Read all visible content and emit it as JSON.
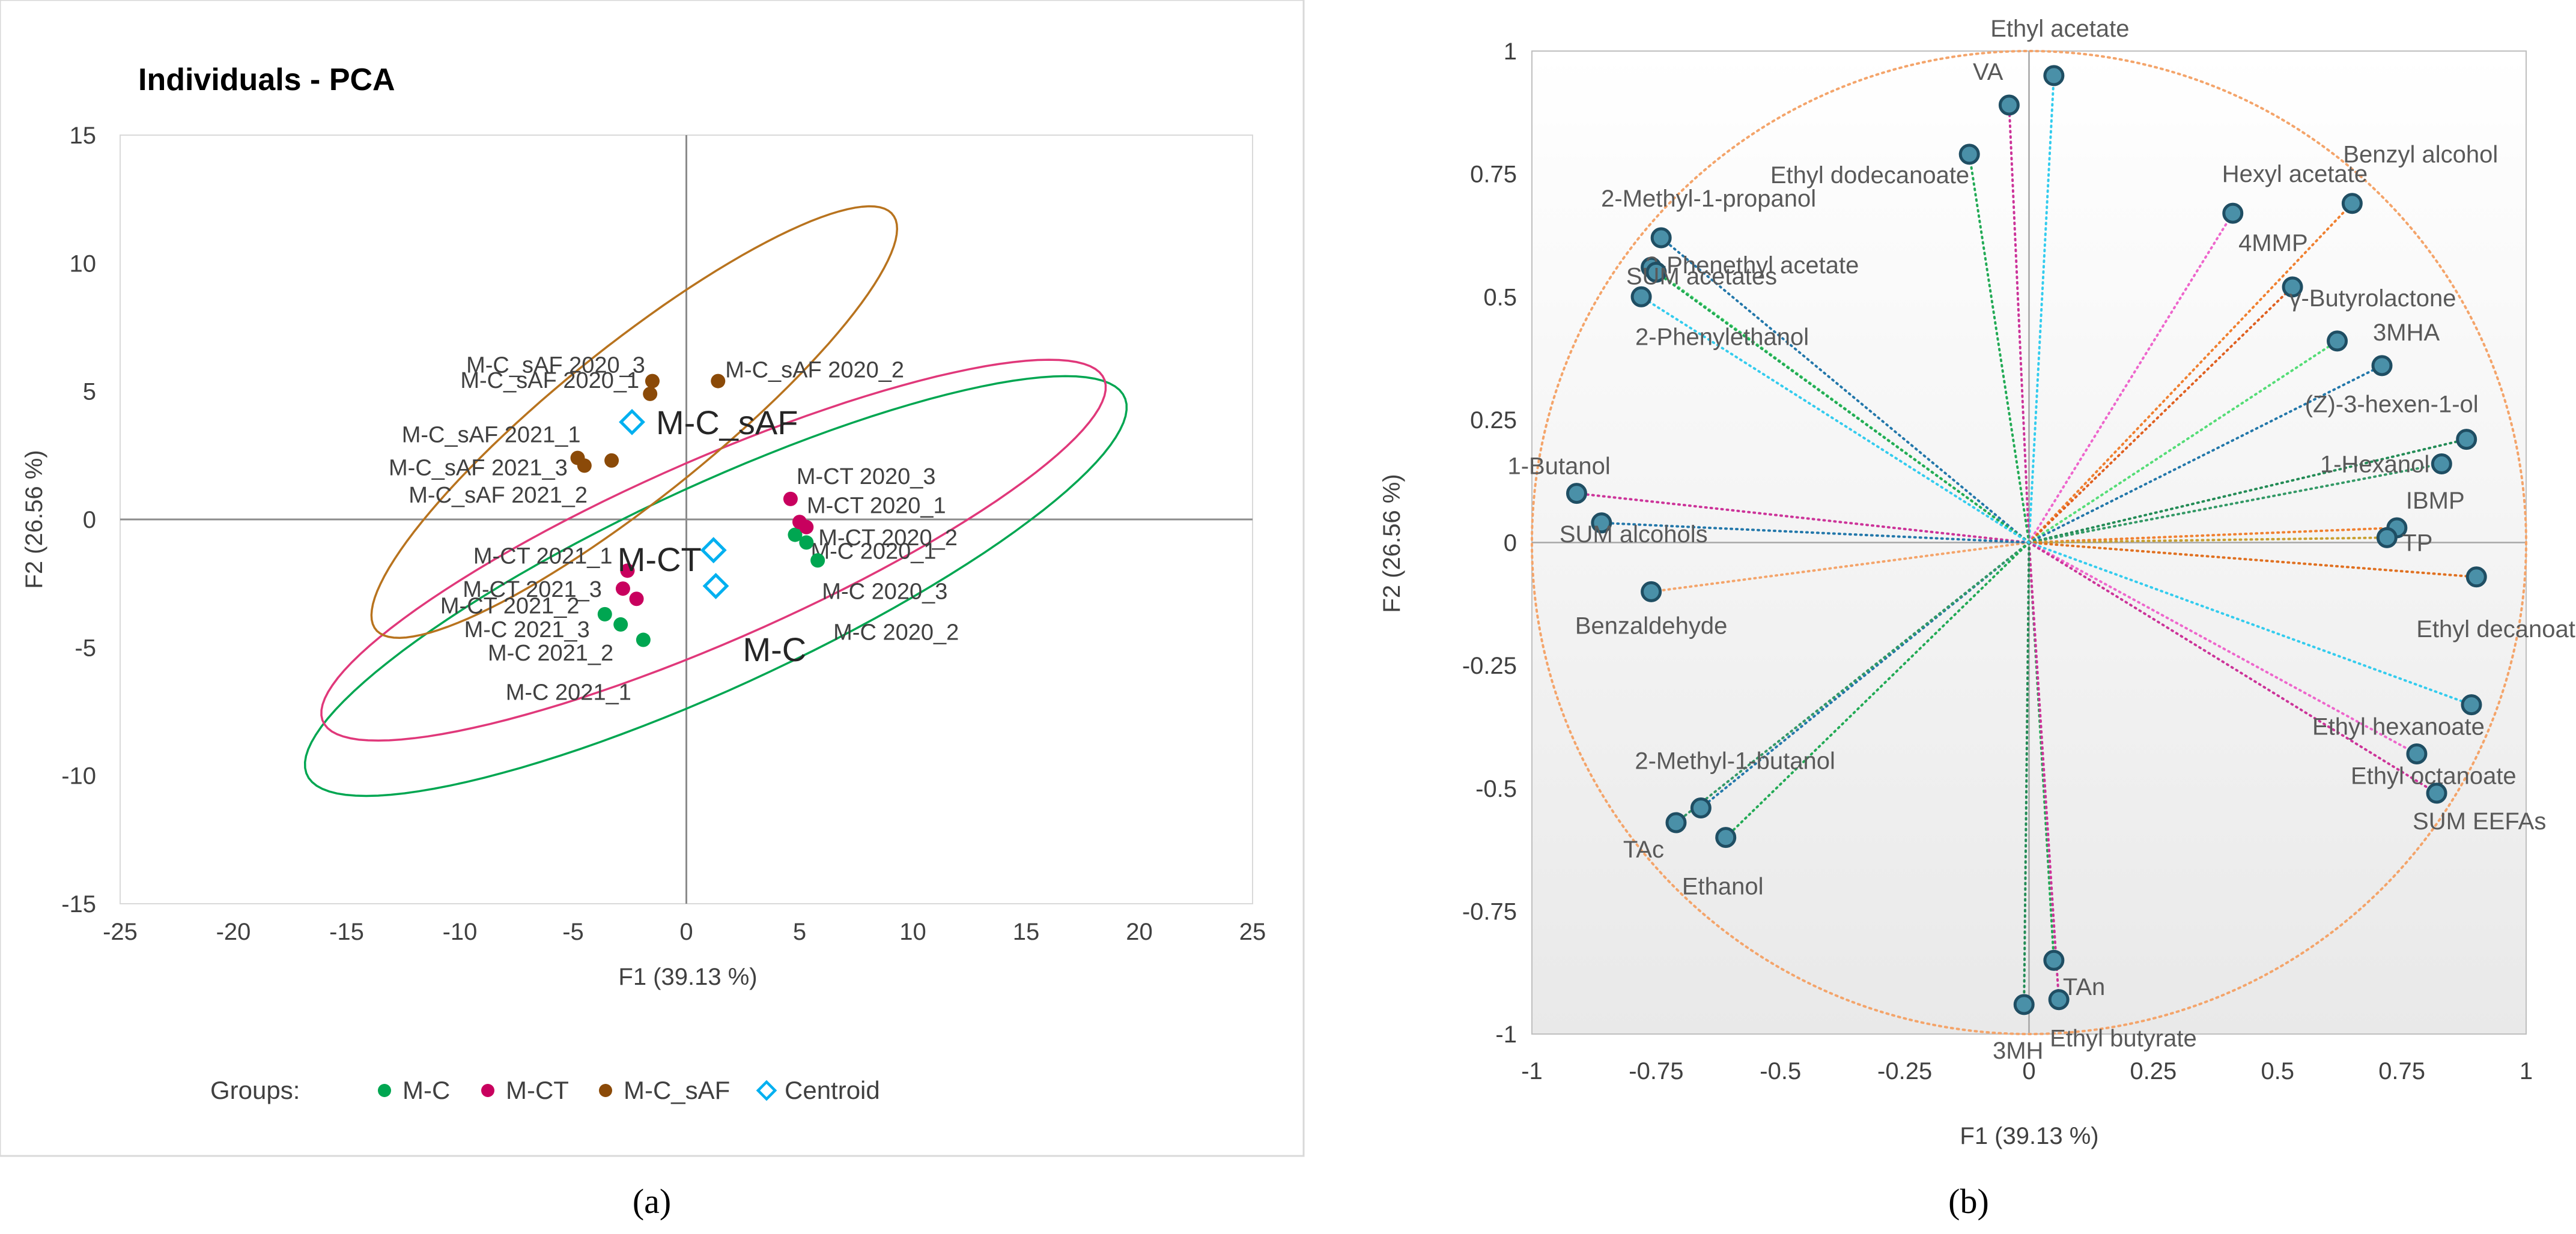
{
  "chart_data": [
    {
      "type": "scatter",
      "title": "Individuals - PCA",
      "caption": "(a)",
      "xlabel": "F1 (39.13 %)",
      "ylabel": "F2 (26.56 %)",
      "xlim": [
        -25,
        25
      ],
      "ylim": [
        -15,
        15
      ],
      "xticks": [
        -25,
        -20,
        -15,
        -10,
        -5,
        0,
        5,
        10,
        15,
        20,
        25
      ],
      "yticks": [
        -15,
        -10,
        -5,
        0,
        5,
        10,
        15
      ],
      "legend_title": "Groups:",
      "legend_position": "bottom",
      "colors": {
        "M-C": "#00A651",
        "M-CT": "#C8005E",
        "M-C_sAF": "#8B4A08",
        "Centroid": "#00B0F0",
        "ellipse_M-C": "#00A651",
        "ellipse_M-CT": "#E0387A",
        "ellipse_M-C_sAF": "#B8731E"
      },
      "series": [
        {
          "name": "M-C",
          "points": [
            {
              "label": "M-C 2020_1",
              "x": 4.8,
              "y": -0.6
            },
            {
              "label": "M-C 2020_3",
              "x": 5.3,
              "y": -0.9
            },
            {
              "label": "M-C 2020_2",
              "x": 5.8,
              "y": -1.6
            },
            {
              "label": "M-C 2021_3",
              "x": -3.6,
              "y": -3.7
            },
            {
              "label": "M-C 2021_2",
              "x": -2.9,
              "y": -4.1
            },
            {
              "label": "M-C 2021_1",
              "x": -1.9,
              "y": -4.7
            }
          ]
        },
        {
          "name": "M-CT",
          "points": [
            {
              "label": "M-CT 2020_3",
              "x": 4.6,
              "y": 0.8
            },
            {
              "label": "M-CT 2020_1",
              "x": 5.0,
              "y": -0.1
            },
            {
              "label": "M-CT 2020_2",
              "x": 5.3,
              "y": -0.3
            },
            {
              "label": "M-CT 2021_1",
              "x": -2.6,
              "y": -2.0
            },
            {
              "label": "M-CT 2021_3",
              "x": -2.8,
              "y": -2.7
            },
            {
              "label": "M-CT 2021_2",
              "x": -2.2,
              "y": -3.1
            }
          ]
        },
        {
          "name": "M-C_sAF",
          "points": [
            {
              "label": "M-C_sAF 2020_3",
              "x": -1.5,
              "y": 5.4
            },
            {
              "label": "M-C_sAF 2020_1",
              "x": -1.6,
              "y": 4.9
            },
            {
              "label": "M-C_sAF 2020_2",
              "x": 1.4,
              "y": 5.4
            },
            {
              "label": "M-C_sAF 2021_1",
              "x": -4.8,
              "y": 2.4
            },
            {
              "label": "M-C_sAF 2021_3",
              "x": -4.5,
              "y": 2.1
            },
            {
              "label": "M-C_sAF 2021_2",
              "x": -3.3,
              "y": 2.3
            }
          ]
        },
        {
          "name": "Centroid",
          "points": [
            {
              "label": "M-C_sAF",
              "x": -2.4,
              "y": 3.8
            },
            {
              "label": "M-CT",
              "x": 1.2,
              "y": -1.2
            },
            {
              "label": "M-C",
              "x": 1.3,
              "y": -2.6
            }
          ]
        }
      ],
      "confidence_ellipses": [
        {
          "group": "M-C",
          "center": [
            1.3,
            -2.6
          ],
          "semi_axes": [
            19.5,
            4.0
          ],
          "angle_deg": 22
        },
        {
          "group": "M-CT",
          "center": [
            1.2,
            -1.2
          ],
          "semi_axes": [
            18.5,
            3.6
          ],
          "angle_deg": 21
        },
        {
          "group": "M-C_sAF",
          "center": [
            -2.3,
            3.8
          ],
          "semi_axes": [
            14.0,
            3.1
          ],
          "angle_deg": 35
        }
      ]
    },
    {
      "type": "scatter",
      "caption": "(b)",
      "xlabel": "F1 (39.13 %)",
      "ylabel": "F2 (26.56 %)",
      "xlim": [
        -1,
        1
      ],
      "ylim": [
        -1,
        1
      ],
      "xticks": [
        -1,
        -0.75,
        -0.5,
        -0.25,
        0,
        0.25,
        0.5,
        0.75,
        1
      ],
      "yticks": [
        -1,
        -0.75,
        -0.5,
        -0.25,
        0,
        0.25,
        0.5,
        0.75,
        1
      ],
      "unit_circle": true,
      "colors": {
        "marker_fill": "#4A90A8",
        "marker_edge": "#1F4E63",
        "circle": "#F4A46A",
        "axis": "#A6A6A6"
      },
      "variables": [
        {
          "label": "Ethyl acetate",
          "x": 0.05,
          "y": 0.95,
          "color": "#33CCEE"
        },
        {
          "label": "VA",
          "x": -0.04,
          "y": 0.89,
          "color": "#CC3399"
        },
        {
          "label": "Ethyl dodecanoate",
          "x": -0.12,
          "y": 0.79,
          "color": "#22AA55"
        },
        {
          "label": "Hexyl acetate",
          "x": 0.41,
          "y": 0.67,
          "color": "#EE66CC"
        },
        {
          "label": "Benzyl alcohol",
          "x": 0.65,
          "y": 0.69,
          "color": "#F08030"
        },
        {
          "label": "4MMP",
          "x": 0.53,
          "y": 0.52,
          "color": "#E06020"
        },
        {
          "label": "γ-Butyrolactone",
          "x": 0.62,
          "y": 0.41,
          "color": "#55DD77"
        },
        {
          "label": "3MHA",
          "x": 0.71,
          "y": 0.36,
          "color": "#2277AA"
        },
        {
          "label": "(Z)-3-hexen-1-ol",
          "x": 0.88,
          "y": 0.21,
          "color": "#228B55"
        },
        {
          "label": "1-Hexanol",
          "x": 0.83,
          "y": 0.16,
          "color": "#339966"
        },
        {
          "label": "IBMP",
          "x": 0.74,
          "y": 0.03,
          "color": "#F08030"
        },
        {
          "label": "TP",
          "x": 0.72,
          "y": 0.01,
          "color": "#C8A030"
        },
        {
          "label": "Ethyl decanoate",
          "x": 0.9,
          "y": -0.07,
          "color": "#E07020"
        },
        {
          "label": "Ethyl hexanoate",
          "x": 0.89,
          "y": -0.33,
          "color": "#33CCEE"
        },
        {
          "label": "Ethyl octanoate",
          "x": 0.78,
          "y": -0.43,
          "color": "#EE66CC"
        },
        {
          "label": "SUM EEFAs",
          "x": 0.82,
          "y": -0.51,
          "color": "#CC3399"
        },
        {
          "label": "TAn",
          "x": 0.05,
          "y": -0.85,
          "color": "#22AA55"
        },
        {
          "label": "Ethyl butyrate",
          "x": 0.06,
          "y": -0.93,
          "color": "#CC3399"
        },
        {
          "label": "3MH",
          "x": -0.01,
          "y": -0.94,
          "color": "#228B55"
        },
        {
          "label": "2-Methyl-1-butanol",
          "x": -0.66,
          "y": -0.54,
          "color": "#2277AA"
        },
        {
          "label": "TAc",
          "x": -0.71,
          "y": -0.57,
          "color": "#339966"
        },
        {
          "label": "Ethanol",
          "x": -0.61,
          "y": -0.6,
          "color": "#22AA55"
        },
        {
          "label": "Benzaldehyde",
          "x": -0.76,
          "y": -0.1,
          "color": "#F4A46A"
        },
        {
          "label": "1-Butanol",
          "x": -0.91,
          "y": 0.1,
          "color": "#CC3399"
        },
        {
          "label": "SUM alcohols",
          "x": -0.86,
          "y": 0.04,
          "color": "#2277AA"
        },
        {
          "label": "2-Methyl-1-propanol",
          "x": -0.74,
          "y": 0.62,
          "color": "#2277AA"
        },
        {
          "label": "2-Phenethyl acetate",
          "x": -0.76,
          "y": 0.56,
          "color": "#55DD77"
        },
        {
          "label": "SUM acetates",
          "x": -0.75,
          "y": 0.55,
          "color": "#22AA55"
        },
        {
          "label": "2-Phenylethanol",
          "x": -0.78,
          "y": 0.5,
          "color": "#33CCEE"
        }
      ]
    }
  ]
}
